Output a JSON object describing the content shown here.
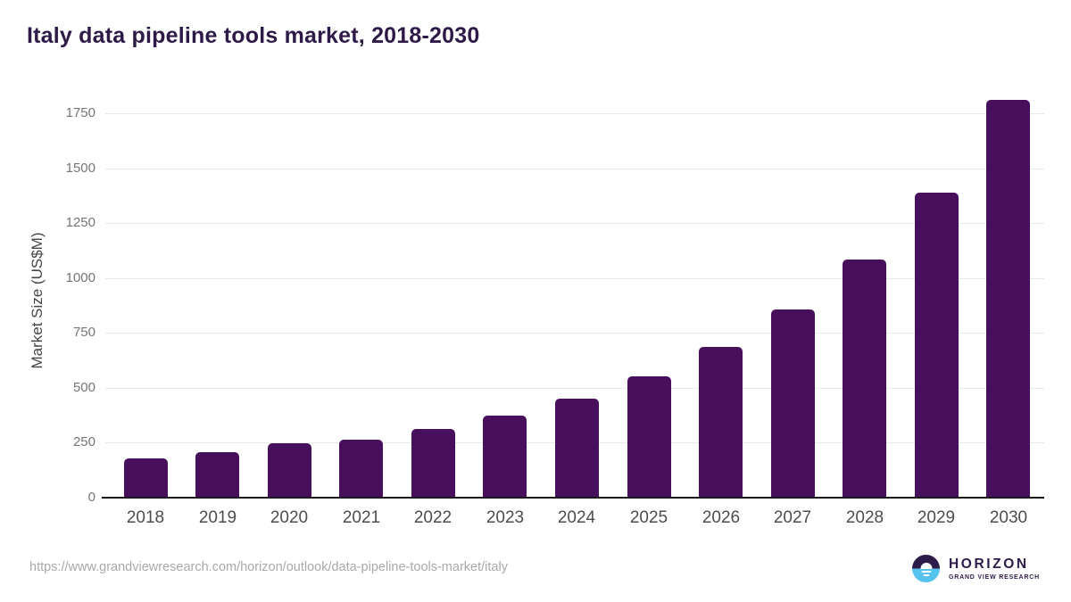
{
  "header": {
    "title": "Italy data pipeline tools market, 2018-2030"
  },
  "chart_data": {
    "type": "bar",
    "title": "Italy data pipeline tools market, 2018-2030",
    "categories": [
      "2018",
      "2019",
      "2020",
      "2021",
      "2022",
      "2023",
      "2024",
      "2025",
      "2026",
      "2027",
      "2028",
      "2029",
      "2030"
    ],
    "values": [
      178,
      206,
      248,
      265,
      314,
      374,
      452,
      554,
      686,
      859,
      1086,
      1390,
      1813
    ],
    "xlabel": "",
    "ylabel": "Market Size (US$M)",
    "ylim": [
      0,
      1850
    ],
    "yticks": [
      0,
      250,
      500,
      750,
      1000,
      1250,
      1500,
      1750
    ],
    "grid": true,
    "legend": false,
    "bar_color": "#48105c"
  },
  "footer": {
    "source_url": "https://www.grandviewresearch.com/horizon/outlook/data-pipeline-tools-market/italy",
    "logo": {
      "brand": "HORIZON",
      "sub_brand": "GRAND VIEW RESEARCH"
    }
  },
  "colors": {
    "bar": "#48105c",
    "title": "#2e1a47",
    "axis_title": "#454545",
    "y_tick_label": "#757575",
    "x_tick_label": "#4d4d4d",
    "gridline": "#e8e8e8",
    "axis_line": "#1a1a1a",
    "url_text": "#a9a9a9",
    "logo_purple": "#2d1b4a",
    "logo_blue": "#56c2ee"
  }
}
